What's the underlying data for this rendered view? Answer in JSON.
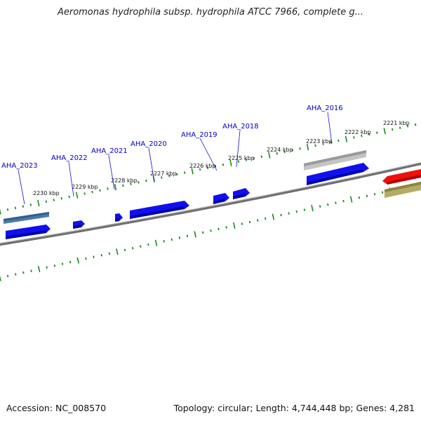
{
  "title": "Aeromonas hydrophila subsp. hydrophila ATCC 7966, complete g...",
  "footer": {
    "accession": "Accession: NC_008570",
    "summary": "Topology: circular; Length: 4,744,448 bp; Genes: 4,281"
  },
  "colors": {
    "backbone": "#7a7a7a",
    "tick": "#1a8a1a",
    "gene_blue": "#1010ee",
    "gene_steel": "#4a7aa8",
    "gene_gray": "#b8b8b8",
    "gene_red": "#ee1010",
    "gene_olive": "#b0a860",
    "label": "#0000cc"
  },
  "scale_labels": [
    "2221 kbp",
    "2222 kbp",
    "2223 kbp",
    "2224 kbp",
    "2225 kbp",
    "2226 kbp",
    "2227 kbp",
    "2228 kbp",
    "2229 kbp",
    "2230 kbp"
  ],
  "gene_labels": [
    "AHA_2016",
    "AHA_2018",
    "AHA_2019",
    "AHA_2020",
    "AHA_2021",
    "AHA_2022",
    "AHA_2023"
  ]
}
